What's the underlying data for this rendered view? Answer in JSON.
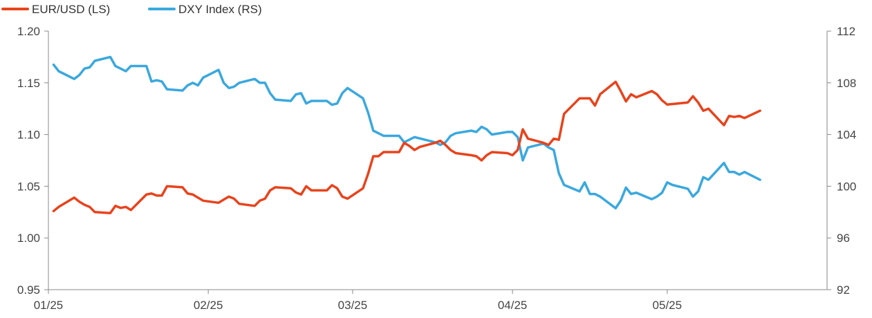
{
  "chart_data": {
    "type": "line",
    "title": "",
    "legend_position": "top-left",
    "grid": false,
    "x_ticks": [
      "01/25",
      "02/25",
      "03/25",
      "04/25",
      "05/25"
    ],
    "y_left": {
      "ticks": [
        "0.95",
        "1.00",
        "1.05",
        "1.10",
        "1.15",
        "1.20"
      ],
      "range": [
        0.95,
        1.2
      ]
    },
    "y_right": {
      "ticks": [
        "92",
        "96",
        "100",
        "104",
        "108",
        "112"
      ],
      "range": [
        92,
        112
      ]
    },
    "series": [
      {
        "name": "EUR/USD (LS)",
        "axis": "left",
        "color": "#E8431C",
        "points": [
          [
            "2025-01-02",
            1.026
          ],
          [
            "2025-01-03",
            1.03
          ],
          [
            "2025-01-06",
            1.039
          ],
          [
            "2025-01-07",
            1.035
          ],
          [
            "2025-01-08",
            1.032
          ],
          [
            "2025-01-09",
            1.03
          ],
          [
            "2025-01-10",
            1.025
          ],
          [
            "2025-01-13",
            1.024
          ],
          [
            "2025-01-14",
            1.031
          ],
          [
            "2025-01-15",
            1.029
          ],
          [
            "2025-01-16",
            1.03
          ],
          [
            "2025-01-17",
            1.027
          ],
          [
            "2025-01-20",
            1.042
          ],
          [
            "2025-01-21",
            1.043
          ],
          [
            "2025-01-22",
            1.041
          ],
          [
            "2025-01-23",
            1.041
          ],
          [
            "2025-01-24",
            1.05
          ],
          [
            "2025-01-27",
            1.049
          ],
          [
            "2025-01-28",
            1.043
          ],
          [
            "2025-01-29",
            1.042
          ],
          [
            "2025-01-30",
            1.039
          ],
          [
            "2025-01-31",
            1.036
          ],
          [
            "2025-02-03",
            1.034
          ],
          [
            "2025-02-04",
            1.037
          ],
          [
            "2025-02-05",
            1.04
          ],
          [
            "2025-02-06",
            1.038
          ],
          [
            "2025-02-07",
            1.033
          ],
          [
            "2025-02-10",
            1.031
          ],
          [
            "2025-02-11",
            1.036
          ],
          [
            "2025-02-12",
            1.038
          ],
          [
            "2025-02-13",
            1.046
          ],
          [
            "2025-02-14",
            1.049
          ],
          [
            "2025-02-17",
            1.048
          ],
          [
            "2025-02-18",
            1.044
          ],
          [
            "2025-02-19",
            1.042
          ],
          [
            "2025-02-20",
            1.05
          ],
          [
            "2025-02-21",
            1.046
          ],
          [
            "2025-02-24",
            1.046
          ],
          [
            "2025-02-25",
            1.051
          ],
          [
            "2025-02-26",
            1.048
          ],
          [
            "2025-02-27",
            1.04
          ],
          [
            "2025-02-28",
            1.038
          ],
          [
            "2025-03-03",
            1.048
          ],
          [
            "2025-03-04",
            1.062
          ],
          [
            "2025-03-05",
            1.079
          ],
          [
            "2025-03-06",
            1.079
          ],
          [
            "2025-03-07",
            1.083
          ],
          [
            "2025-03-10",
            1.083
          ],
          [
            "2025-03-11",
            1.092
          ],
          [
            "2025-03-12",
            1.089
          ],
          [
            "2025-03-13",
            1.085
          ],
          [
            "2025-03-14",
            1.088
          ],
          [
            "2025-03-17",
            1.092
          ],
          [
            "2025-03-18",
            1.094
          ],
          [
            "2025-03-19",
            1.09
          ],
          [
            "2025-03-20",
            1.085
          ],
          [
            "2025-03-21",
            1.082
          ],
          [
            "2025-03-24",
            1.08
          ],
          [
            "2025-03-25",
            1.079
          ],
          [
            "2025-03-26",
            1.075
          ],
          [
            "2025-03-27",
            1.08
          ],
          [
            "2025-03-28",
            1.083
          ],
          [
            "2025-03-31",
            1.082
          ],
          [
            "2025-04-01",
            1.08
          ],
          [
            "2025-04-02",
            1.085
          ],
          [
            "2025-04-03",
            1.105
          ],
          [
            "2025-04-04",
            1.096
          ],
          [
            "2025-04-07",
            1.092
          ],
          [
            "2025-04-08",
            1.09
          ],
          [
            "2025-04-09",
            1.096
          ],
          [
            "2025-04-10",
            1.095
          ],
          [
            "2025-04-11",
            1.12
          ],
          [
            "2025-04-14",
            1.135
          ],
          [
            "2025-04-16",
            1.135
          ],
          [
            "2025-04-17",
            1.128
          ],
          [
            "2025-04-18",
            1.139
          ],
          [
            "2025-04-21",
            1.151
          ],
          [
            "2025-04-22",
            1.142
          ],
          [
            "2025-04-23",
            1.132
          ],
          [
            "2025-04-24",
            1.139
          ],
          [
            "2025-04-25",
            1.136
          ],
          [
            "2025-04-28",
            1.142
          ],
          [
            "2025-04-29",
            1.139
          ],
          [
            "2025-04-30",
            1.133
          ],
          [
            "2025-05-01",
            1.129
          ],
          [
            "2025-05-05",
            1.131
          ],
          [
            "2025-05-06",
            1.137
          ],
          [
            "2025-05-07",
            1.131
          ],
          [
            "2025-05-08",
            1.123
          ],
          [
            "2025-05-09",
            1.125
          ],
          [
            "2025-05-12",
            1.109
          ],
          [
            "2025-05-13",
            1.118
          ],
          [
            "2025-05-14",
            1.117
          ],
          [
            "2025-05-15",
            1.118
          ],
          [
            "2025-05-16",
            1.116
          ],
          [
            "2025-05-19",
            1.123
          ]
        ]
      },
      {
        "name": "DXY Index (RS)",
        "axis": "right",
        "color": "#3AA8DE",
        "points": [
          [
            "2025-01-02",
            109.4
          ],
          [
            "2025-01-03",
            108.9
          ],
          [
            "2025-01-06",
            108.3
          ],
          [
            "2025-01-07",
            108.6
          ],
          [
            "2025-01-08",
            109.1
          ],
          [
            "2025-01-09",
            109.2
          ],
          [
            "2025-01-10",
            109.7
          ],
          [
            "2025-01-13",
            110.0
          ],
          [
            "2025-01-14",
            109.3
          ],
          [
            "2025-01-15",
            109.1
          ],
          [
            "2025-01-16",
            108.9
          ],
          [
            "2025-01-17",
            109.3
          ],
          [
            "2025-01-20",
            109.3
          ],
          [
            "2025-01-21",
            108.1
          ],
          [
            "2025-01-22",
            108.2
          ],
          [
            "2025-01-23",
            108.1
          ],
          [
            "2025-01-24",
            107.5
          ],
          [
            "2025-01-27",
            107.4
          ],
          [
            "2025-01-28",
            107.8
          ],
          [
            "2025-01-29",
            108.0
          ],
          [
            "2025-01-30",
            107.8
          ],
          [
            "2025-01-31",
            108.4
          ],
          [
            "2025-02-03",
            109.0
          ],
          [
            "2025-02-04",
            108.0
          ],
          [
            "2025-02-05",
            107.6
          ],
          [
            "2025-02-06",
            107.7
          ],
          [
            "2025-02-07",
            108.0
          ],
          [
            "2025-02-10",
            108.3
          ],
          [
            "2025-02-11",
            108.0
          ],
          [
            "2025-02-12",
            108.0
          ],
          [
            "2025-02-13",
            107.2
          ],
          [
            "2025-02-14",
            106.7
          ],
          [
            "2025-02-17",
            106.6
          ],
          [
            "2025-02-18",
            107.1
          ],
          [
            "2025-02-19",
            107.2
          ],
          [
            "2025-02-20",
            106.4
          ],
          [
            "2025-02-21",
            106.6
          ],
          [
            "2025-02-24",
            106.6
          ],
          [
            "2025-02-25",
            106.3
          ],
          [
            "2025-02-26",
            106.4
          ],
          [
            "2025-02-27",
            107.2
          ],
          [
            "2025-02-28",
            107.6
          ],
          [
            "2025-03-03",
            106.8
          ],
          [
            "2025-03-04",
            105.7
          ],
          [
            "2025-03-05",
            104.3
          ],
          [
            "2025-03-06",
            104.1
          ],
          [
            "2025-03-07",
            103.9
          ],
          [
            "2025-03-10",
            103.9
          ],
          [
            "2025-03-11",
            103.4
          ],
          [
            "2025-03-12",
            103.6
          ],
          [
            "2025-03-13",
            103.8
          ],
          [
            "2025-03-14",
            103.7
          ],
          [
            "2025-03-17",
            103.4
          ],
          [
            "2025-03-18",
            103.2
          ],
          [
            "2025-03-19",
            103.4
          ],
          [
            "2025-03-20",
            103.9
          ],
          [
            "2025-03-21",
            104.1
          ],
          [
            "2025-03-24",
            104.3
          ],
          [
            "2025-03-25",
            104.2
          ],
          [
            "2025-03-26",
            104.6
          ],
          [
            "2025-03-27",
            104.4
          ],
          [
            "2025-03-28",
            104.0
          ],
          [
            "2025-03-31",
            104.2
          ],
          [
            "2025-04-01",
            104.2
          ],
          [
            "2025-04-02",
            103.8
          ],
          [
            "2025-04-03",
            102.0
          ],
          [
            "2025-04-04",
            103.0
          ],
          [
            "2025-04-07",
            103.3
          ],
          [
            "2025-04-08",
            103.0
          ],
          [
            "2025-04-09",
            102.8
          ],
          [
            "2025-04-10",
            101.0
          ],
          [
            "2025-04-11",
            100.1
          ],
          [
            "2025-04-14",
            99.6
          ],
          [
            "2025-04-15",
            100.3
          ],
          [
            "2025-04-16",
            99.4
          ],
          [
            "2025-04-17",
            99.4
          ],
          [
            "2025-04-18",
            99.2
          ],
          [
            "2025-04-21",
            98.3
          ],
          [
            "2025-04-22",
            98.9
          ],
          [
            "2025-04-23",
            99.9
          ],
          [
            "2025-04-24",
            99.4
          ],
          [
            "2025-04-25",
            99.5
          ],
          [
            "2025-04-28",
            99.0
          ],
          [
            "2025-04-29",
            99.2
          ],
          [
            "2025-04-30",
            99.5
          ],
          [
            "2025-05-01",
            100.3
          ],
          [
            "2025-05-02",
            100.1
          ],
          [
            "2025-05-05",
            99.8
          ],
          [
            "2025-05-06",
            99.2
          ],
          [
            "2025-05-07",
            99.6
          ],
          [
            "2025-05-08",
            100.7
          ],
          [
            "2025-05-09",
            100.5
          ],
          [
            "2025-05-12",
            101.8
          ],
          [
            "2025-05-13",
            101.1
          ],
          [
            "2025-05-14",
            101.1
          ],
          [
            "2025-05-15",
            100.9
          ],
          [
            "2025-05-16",
            101.1
          ],
          [
            "2025-05-19",
            100.5
          ]
        ]
      }
    ]
  }
}
